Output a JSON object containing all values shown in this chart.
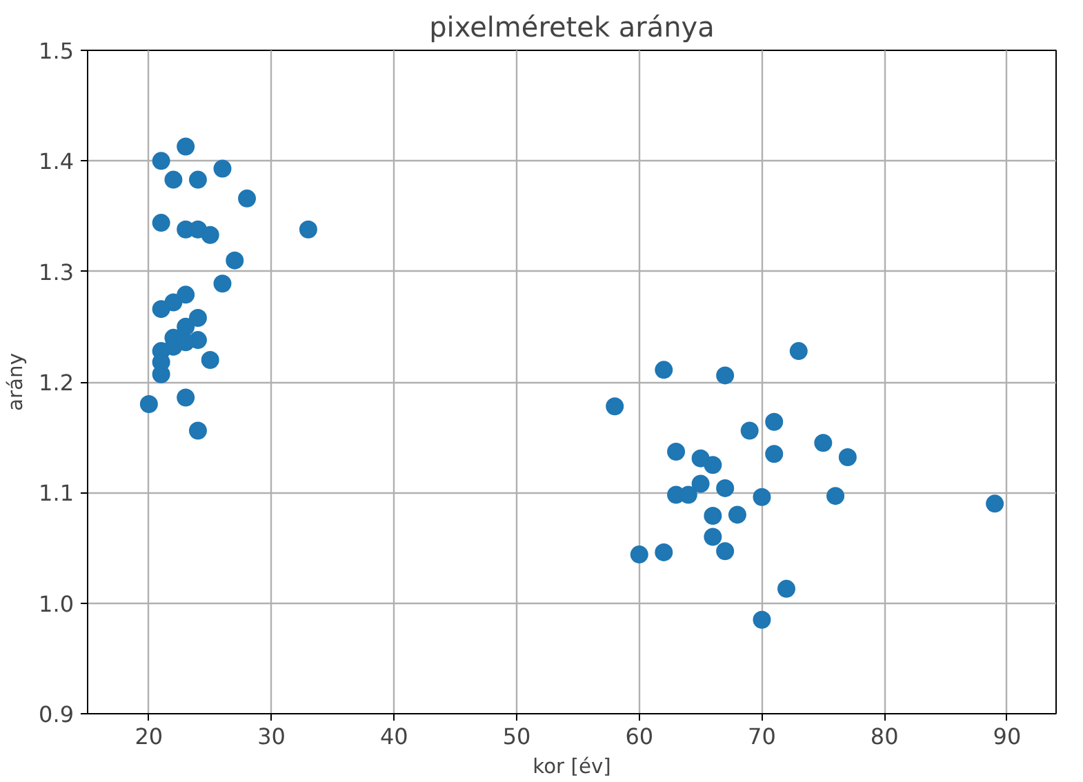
{
  "chart_data": {
    "type": "scatter",
    "title": "pixelméretek aránya",
    "xlabel": "kor [év]",
    "ylabel": "arány",
    "xlim": [
      15,
      94
    ],
    "ylim": [
      0.9,
      1.5
    ],
    "xticks": [
      20,
      30,
      40,
      50,
      60,
      70,
      80,
      90
    ],
    "yticks": [
      {
        "value": 0.9,
        "label": "0.9"
      },
      {
        "value": 1.0,
        "label": "1.0"
      },
      {
        "value": 1.1,
        "label": "1.1"
      },
      {
        "value": 1.2,
        "label": "1.2"
      },
      {
        "value": 1.3,
        "label": "1.3"
      },
      {
        "value": 1.4,
        "label": "1.4"
      },
      {
        "value": 1.5,
        "label": "1.5"
      }
    ],
    "grid": true,
    "marker": "circle",
    "series": [
      {
        "color": "#1f77b4",
        "x": [
          23,
          21,
          26,
          22,
          24,
          28,
          21,
          23,
          24,
          25,
          33,
          27,
          26,
          21,
          22,
          23,
          24,
          23,
          22,
          24,
          21,
          22,
          23,
          21,
          21,
          25,
          20,
          23,
          24,
          73,
          62,
          67,
          58,
          69,
          71,
          75,
          63,
          65,
          66,
          71,
          77,
          63,
          64,
          65,
          67,
          70,
          76,
          66,
          68,
          66,
          60,
          62,
          67,
          72,
          70,
          89
        ],
        "values": [
          1.413,
          1.4,
          1.393,
          1.383,
          1.383,
          1.366,
          1.344,
          1.338,
          1.338,
          1.333,
          1.338,
          1.31,
          1.289,
          1.266,
          1.272,
          1.279,
          1.258,
          1.25,
          1.24,
          1.238,
          1.228,
          1.232,
          1.236,
          1.218,
          1.207,
          1.22,
          1.18,
          1.186,
          1.156,
          1.228,
          1.211,
          1.206,
          1.178,
          1.156,
          1.164,
          1.145,
          1.137,
          1.131,
          1.125,
          1.135,
          1.132,
          1.098,
          1.098,
          1.108,
          1.104,
          1.096,
          1.097,
          1.079,
          1.08,
          1.06,
          1.044,
          1.046,
          1.047,
          1.013,
          0.985,
          1.09
        ]
      }
    ]
  }
}
